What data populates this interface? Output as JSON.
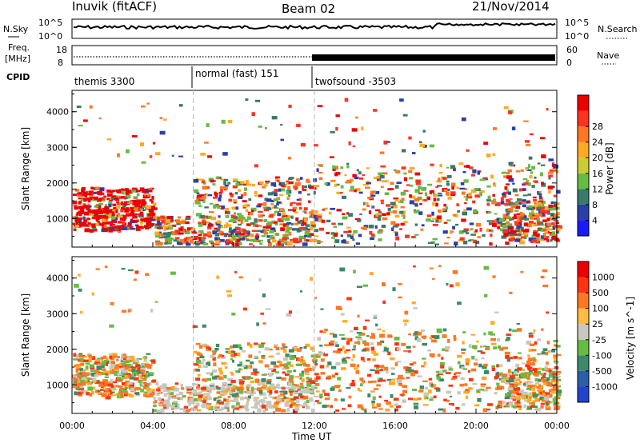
{
  "header": {
    "station": "Inuvik (fitACF)",
    "beam": "Beam 02",
    "date": "21/Nov/2014"
  },
  "noise_panel": {
    "left_label": "N.Sky",
    "right_label": "N.Search",
    "left_ticks": [
      "10^5",
      "10^0"
    ],
    "right_ticks": [
      "10^5",
      "10^0"
    ]
  },
  "freq_panel": {
    "left_label_1": "Freq.",
    "left_label_2": "[MHz]",
    "left_ticks": [
      "18",
      "8"
    ],
    "right_label": "Nave",
    "right_ticks": [
      "60",
      "0"
    ]
  },
  "cpid": {
    "label": "CPID",
    "modes": [
      {
        "name": "themis 3300",
        "start_hour": 0
      },
      {
        "name": "normal (fast) 151",
        "start_hour": 6
      },
      {
        "name": "twofsound -3503",
        "start_hour": 12
      }
    ]
  },
  "chart_data": [
    {
      "type": "heatmap",
      "panel": "power",
      "ylabel": "Slant Range [km]",
      "xlabel": "",
      "colorbar_label": "Power [dB]",
      "colorbar_ticks": [
        "4",
        "8",
        "12",
        "16",
        "20",
        "24",
        "28"
      ],
      "colorbar_colors": [
        "#1a1aff",
        "#2a3fa8",
        "#3a7a6a",
        "#66bb44",
        "#cccc33",
        "#ffaa22",
        "#ff7722",
        "#ff3322",
        "#ee0000"
      ],
      "y_ticks": [
        "1000",
        "2000",
        "3000",
        "4000"
      ],
      "ylim": [
        200,
        4600
      ],
      "xlim": [
        0,
        24
      ],
      "dashed_x": [
        6,
        12
      ]
    },
    {
      "type": "heatmap",
      "panel": "velocity",
      "ylabel": "Slant Range [km]",
      "xlabel": "Time UT",
      "colorbar_label": "Velocity [m s^-1]",
      "colorbar_ticks": [
        "1000",
        "500",
        "100",
        "25",
        "-25",
        "-100",
        "-500",
        "-1000"
      ],
      "colorbar_colors": [
        "#2244cc",
        "#2a5fa8",
        "#3d8a6a",
        "#66bb44",
        "#c8c8c0",
        "#ffbb44",
        "#ff7722",
        "#ff3311",
        "#ee0000"
      ],
      "y_ticks": [
        "1000",
        "2000",
        "3000",
        "4000"
      ],
      "x_ticks": [
        "00:00",
        "04:00",
        "08:00",
        "12:00",
        "16:00",
        "20:00",
        "00:00"
      ],
      "ylim": [
        200,
        4600
      ],
      "xlim": [
        0,
        24
      ],
      "dashed_x": [
        6,
        12
      ]
    }
  ]
}
